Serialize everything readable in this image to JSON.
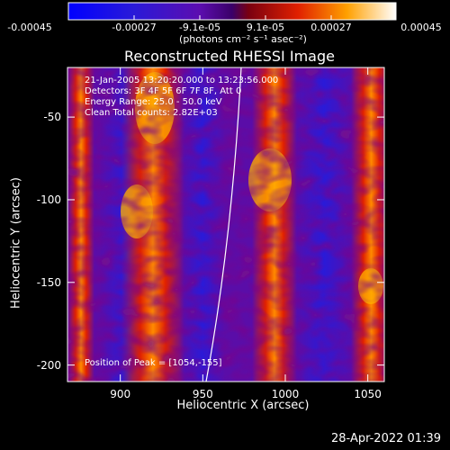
{
  "colorbar": {
    "tick_labels": [
      "-0.00045",
      "-0.00027",
      "-9.1e-05",
      "9.1e-05",
      "0.00027",
      "0.00045"
    ],
    "unit": "(photons cm⁻² s⁻¹ asec⁻²)",
    "range": [
      -0.00045,
      0.00045
    ]
  },
  "plot": {
    "title": "Reconstructed RHESSI Image",
    "xlabel": "Heliocentric X (arcsec)",
    "ylabel": "Heliocentric Y (arcsec)",
    "xticks": [
      "900",
      "950",
      "1000",
      "1050"
    ],
    "yticks": [
      "-50",
      "-100",
      "-150",
      "-200"
    ],
    "xlim": [
      868,
      1060
    ],
    "ylim": [
      -210,
      -20
    ],
    "annotations": [
      "21-Jan-2005 13:20:20.000 to 13:23:56.000",
      "Detectors: 3F 4F 5F 6F 7F 8F, Att 0",
      "Energy Range: 25.0 - 50.0 keV",
      "Clean    Total counts: 2.82E+03"
    ],
    "peak_label": "Position of Peak = [1054,-155]"
  },
  "footer": "28-Apr-2022 01:39"
}
